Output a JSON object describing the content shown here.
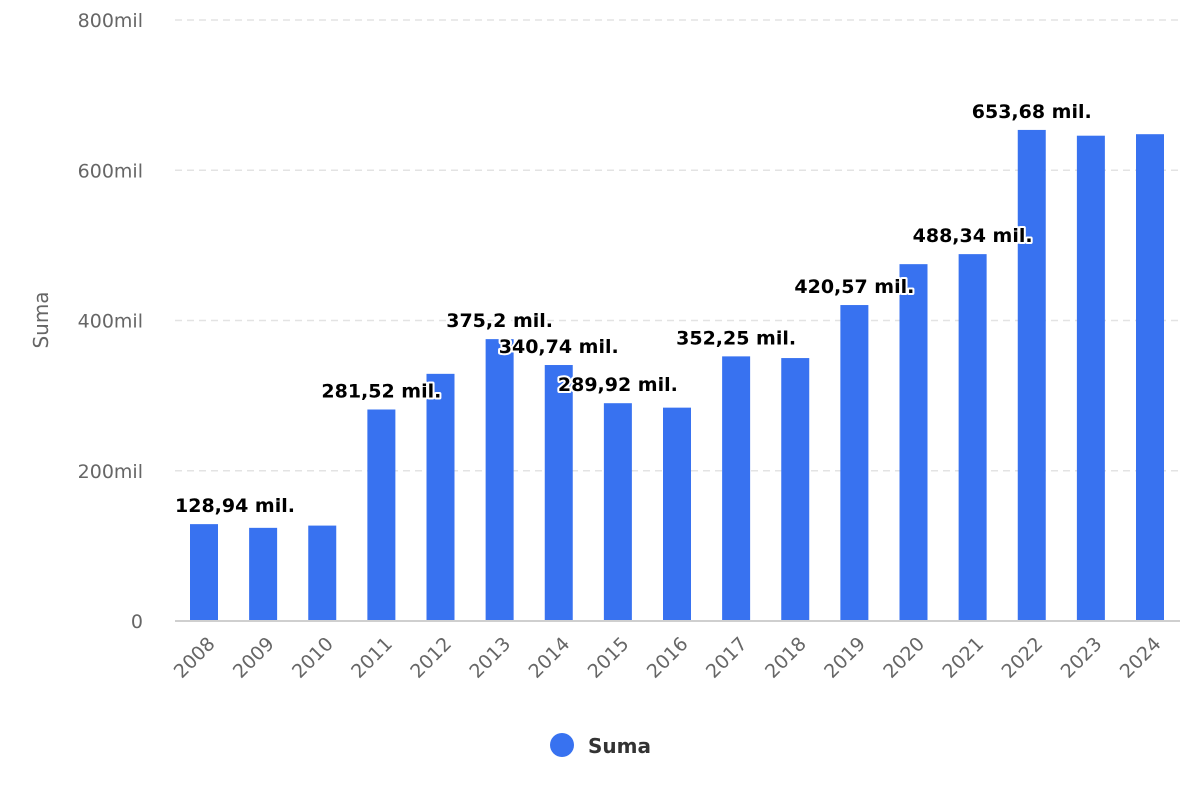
{
  "chart_data": {
    "type": "bar",
    "title": "",
    "xlabel": "",
    "ylabel": "Suma",
    "ylim": [
      0,
      800
    ],
    "yticks": [
      0,
      200,
      400,
      600,
      800
    ],
    "ytick_labels": [
      "0",
      "200mil",
      "400mil",
      "600mil",
      "800mil"
    ],
    "grid": true,
    "categories": [
      "2008",
      "2009",
      "2010",
      "2011",
      "2012",
      "2013",
      "2014",
      "2015",
      "2016",
      "2017",
      "2018",
      "2019",
      "2020",
      "2021",
      "2022",
      "2023",
      "2024"
    ],
    "series": [
      {
        "name": "Suma",
        "color": "#3872f0",
        "values": [
          128.94,
          124,
          127,
          281.52,
          329,
          375.2,
          340.74,
          289.92,
          284,
          352.25,
          350,
          420.57,
          475,
          488.34,
          653.68,
          646,
          648
        ],
        "data_labels": [
          "128,94 mil.",
          null,
          null,
          "281,52 mil.",
          null,
          "375,2 mil.",
          "340,74 mil.",
          "289,92 mil.",
          null,
          "352,25 mil.",
          null,
          "420,57 mil.",
          null,
          "488,34 mil.",
          "653,68 mil.",
          null,
          null
        ]
      }
    ],
    "legend": {
      "position": "bottom-center",
      "entries": [
        "Suma"
      ]
    }
  }
}
